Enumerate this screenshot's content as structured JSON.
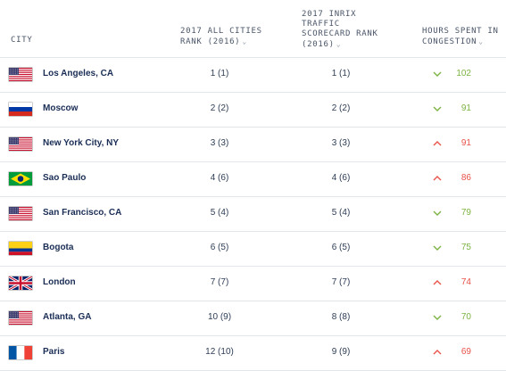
{
  "header": {
    "city": "CITY",
    "all_cities_line1": "2017 ALL CITIES",
    "all_cities_line2": "RANK (2016)",
    "inrix_line1": "2017 INRIX",
    "inrix_line2": "TRAFFIC",
    "inrix_line3": "SCORECARD RANK",
    "inrix_line4": "(2016)",
    "hours_line1": "HOURS SPENT IN",
    "hours_line2": "CONGESTION",
    "sort_icon": "chevron-down-icon"
  },
  "colors": {
    "trend_down": "#7cb342",
    "trend_up": "#e8534a"
  },
  "rows": [
    {
      "flag": "usa",
      "city": "Los Angeles, CA",
      "all_rank": "1 (1)",
      "inrix_rank": "1 (1)",
      "trend": "down",
      "hours": "102"
    },
    {
      "flag": "russia",
      "city": "Moscow",
      "all_rank": "2 (2)",
      "inrix_rank": "2 (2)",
      "trend": "down",
      "hours": "91"
    },
    {
      "flag": "usa",
      "city": "New York City, NY",
      "all_rank": "3 (3)",
      "inrix_rank": "3 (3)",
      "trend": "up",
      "hours": "91"
    },
    {
      "flag": "brazil",
      "city": "Sao Paulo",
      "all_rank": "4 (6)",
      "inrix_rank": "4 (6)",
      "trend": "up",
      "hours": "86"
    },
    {
      "flag": "usa",
      "city": "San Francisco, CA",
      "all_rank": "5 (4)",
      "inrix_rank": "5 (4)",
      "trend": "down",
      "hours": "79"
    },
    {
      "flag": "colombia",
      "city": "Bogota",
      "all_rank": "6 (5)",
      "inrix_rank": "6 (5)",
      "trend": "down",
      "hours": "75"
    },
    {
      "flag": "uk",
      "city": "London",
      "all_rank": "7 (7)",
      "inrix_rank": "7 (7)",
      "trend": "up",
      "hours": "74"
    },
    {
      "flag": "usa",
      "city": "Atlanta, GA",
      "all_rank": "10 (9)",
      "inrix_rank": "8 (8)",
      "trend": "down",
      "hours": "70"
    },
    {
      "flag": "france",
      "city": "Paris",
      "all_rank": "12 (10)",
      "inrix_rank": "9 (9)",
      "trend": "up",
      "hours": "69"
    }
  ]
}
